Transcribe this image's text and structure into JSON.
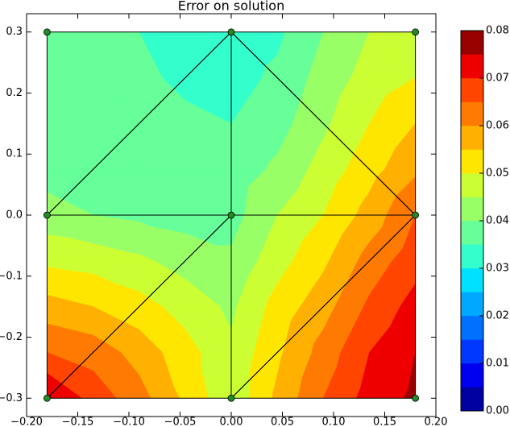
{
  "chart_data": {
    "type": "contour",
    "title": "Error on solution",
    "xlim": [
      -0.2,
      0.2
    ],
    "ylim": [
      -0.33,
      0.33
    ],
    "xticks": [
      {
        "value": -0.2,
        "label": "−0.20"
      },
      {
        "value": -0.15,
        "label": "−0.15"
      },
      {
        "value": -0.1,
        "label": "−0.10"
      },
      {
        "value": -0.05,
        "label": "−0.05"
      },
      {
        "value": 0,
        "label": "0.00"
      },
      {
        "value": 0.05,
        "label": "0.05"
      },
      {
        "value": 0.1,
        "label": "0.10"
      },
      {
        "value": 0.15,
        "label": "0.15"
      },
      {
        "value": 0.2,
        "label": "0.20"
      }
    ],
    "yticks": [
      {
        "value": -0.3,
        "label": "−0.3"
      },
      {
        "value": -0.2,
        "label": "−0.2"
      },
      {
        "value": -0.1,
        "label": "−0.1"
      },
      {
        "value": 0,
        "label": "0.0"
      },
      {
        "value": 0.1,
        "label": "0.1"
      },
      {
        "value": 0.2,
        "label": "0.2"
      },
      {
        "value": 0.3,
        "label": "0.3"
      }
    ],
    "field": {
      "x": [
        -0.18,
        -0.135,
        -0.09,
        -0.045,
        0,
        0.045,
        0.09,
        0.135,
        0.18
      ],
      "y": [
        0.3,
        0.225,
        0.15,
        0.075,
        0,
        -0.075,
        -0.15,
        -0.225,
        -0.3
      ],
      "z": [
        [
          0.037,
          0.037,
          0.035,
          0.033,
          0.032,
          0.034,
          0.04,
          0.045,
          0.048
        ],
        [
          0.037,
          0.037,
          0.036,
          0.034,
          0.033,
          0.036,
          0.042,
          0.047,
          0.05
        ],
        [
          0.037,
          0.037,
          0.037,
          0.036,
          0.035,
          0.038,
          0.044,
          0.05,
          0.055
        ],
        [
          0.038,
          0.038,
          0.037,
          0.037,
          0.037,
          0.041,
          0.047,
          0.053,
          0.059
        ],
        [
          0.042,
          0.04,
          0.039,
          0.038,
          0.038,
          0.045,
          0.05,
          0.057,
          0.065
        ],
        [
          0.049,
          0.048,
          0.046,
          0.043,
          0.041,
          0.048,
          0.054,
          0.062,
          0.068
        ],
        [
          0.057,
          0.055,
          0.052,
          0.048,
          0.044,
          0.052,
          0.058,
          0.066,
          0.072
        ],
        [
          0.065,
          0.063,
          0.058,
          0.052,
          0.046,
          0.054,
          0.062,
          0.07,
          0.075
        ],
        [
          0.076,
          0.068,
          0.062,
          0.054,
          0.046,
          0.056,
          0.065,
          0.072,
          0.076
        ]
      ]
    },
    "levels": [
      0,
      0.005,
      0.01,
      0.015,
      0.02,
      0.025,
      0.03,
      0.035,
      0.04,
      0.045,
      0.05,
      0.055,
      0.06,
      0.065,
      0.07,
      0.075,
      0.08
    ],
    "colors": [
      "#0000a0",
      "#0000f0",
      "#0038ff",
      "#0070ff",
      "#00a8ff",
      "#00e0ff",
      "#33ffcc",
      "#66ff99",
      "#99ff66",
      "#ccff33",
      "#ffe600",
      "#ffb000",
      "#ff7a00",
      "#ff4500",
      "#ee0000",
      "#990000"
    ],
    "colorbar_ticks": [
      {
        "value": 0,
        "label": "0.00"
      },
      {
        "value": 0.01,
        "label": "0.01"
      },
      {
        "value": 0.02,
        "label": "0.02"
      },
      {
        "value": 0.03,
        "label": "0.03"
      },
      {
        "value": 0.04,
        "label": "0.04"
      },
      {
        "value": 0.05,
        "label": "0.05"
      },
      {
        "value": 0.06,
        "label": "0.06"
      },
      {
        "value": 0.07,
        "label": "0.07"
      },
      {
        "value": 0.08,
        "label": "0.08"
      }
    ],
    "mesh": {
      "nodes_x": [
        -0.18,
        0,
        0.18,
        -0.18,
        0,
        0.18,
        -0.18,
        0,
        0.18
      ],
      "nodes_y": [
        0.3,
        0.3,
        0.3,
        0,
        0,
        0,
        -0.3,
        -0.3,
        -0.3
      ],
      "triangles": [
        [
          0,
          1,
          3
        ],
        [
          3,
          1,
          4
        ],
        [
          1,
          2,
          5
        ],
        [
          1,
          5,
          4
        ],
        [
          3,
          4,
          6
        ],
        [
          6,
          4,
          7
        ],
        [
          4,
          5,
          7
        ],
        [
          7,
          5,
          8
        ]
      ],
      "line_color": "#000000",
      "node_color": "#228b22"
    }
  }
}
